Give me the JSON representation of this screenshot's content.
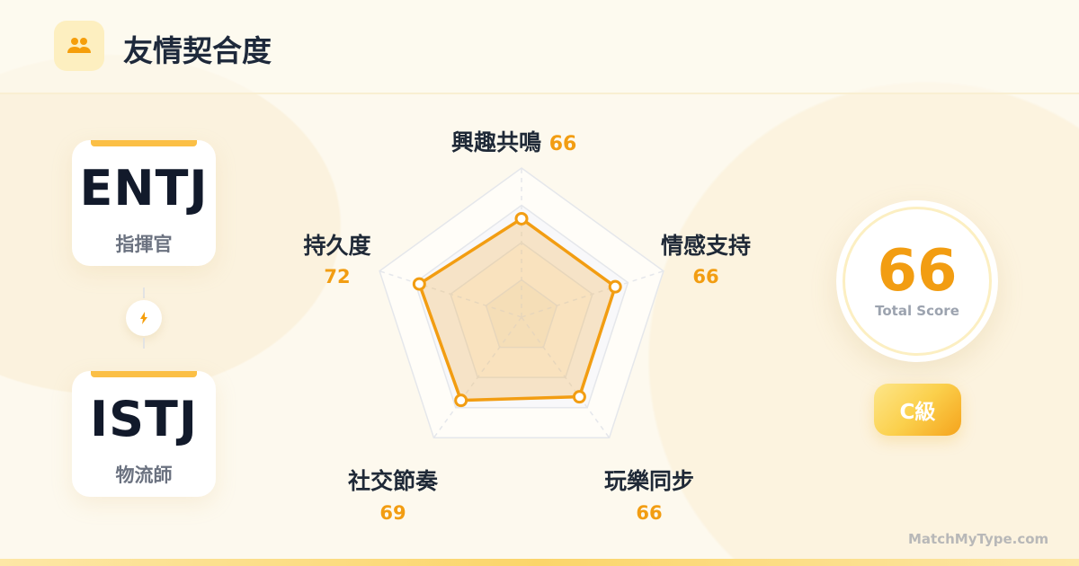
{
  "header": {
    "title": "友情契合度",
    "icon": "people-icon"
  },
  "types": [
    {
      "code": "ENTJ",
      "name": "指揮官"
    },
    {
      "code": "ISTJ",
      "name": "物流師"
    }
  ],
  "connector_icon": "lightning-icon",
  "chart_data": {
    "type": "radar",
    "max": 100,
    "rings": [
      25,
      50,
      75,
      100
    ],
    "axes": [
      {
        "label": "興趣共鳴",
        "value": 66
      },
      {
        "label": "情感支持",
        "value": 66
      },
      {
        "label": "玩樂同步",
        "value": 66
      },
      {
        "label": "社交節奏",
        "value": 69
      },
      {
        "label": "持久度",
        "value": 72
      }
    ],
    "color": "#f29d12"
  },
  "score": {
    "value": "66",
    "label": "Total Score"
  },
  "grade": "C級",
  "brand": "MatchMyType.com"
}
